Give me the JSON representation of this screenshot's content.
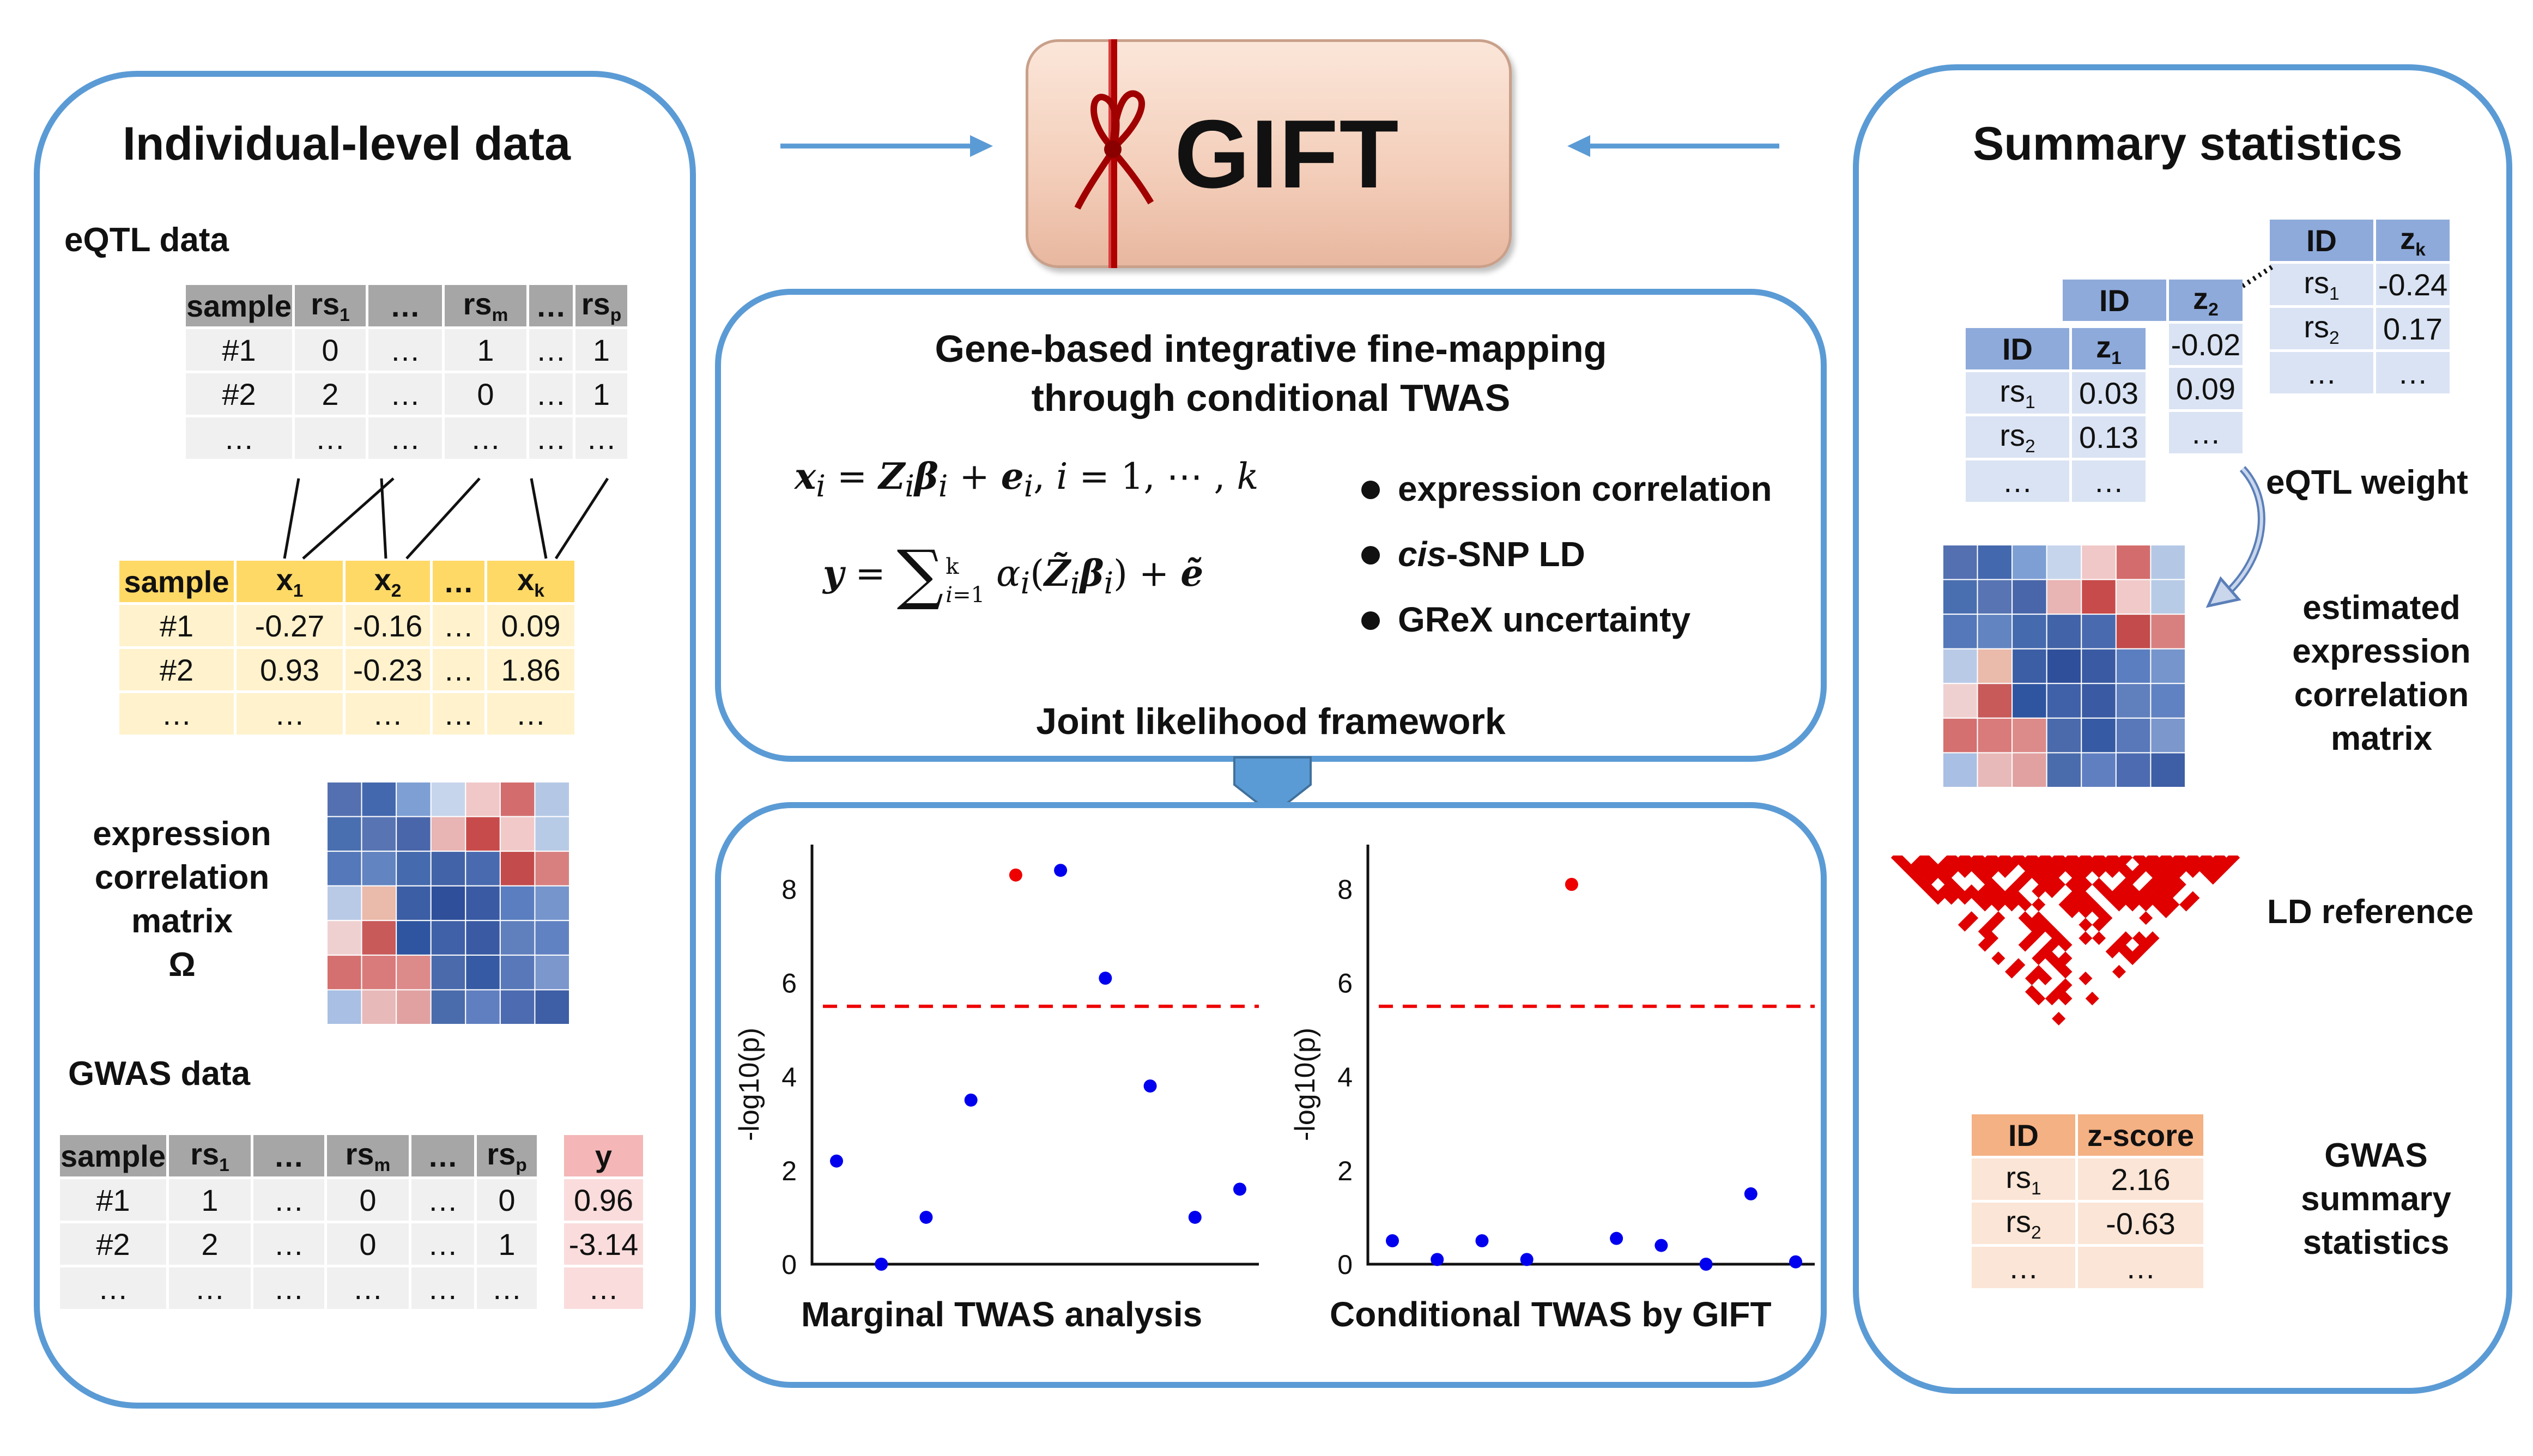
{
  "left_panel": {
    "title": "Individual-level data",
    "eqtl_label": "eQTL data",
    "geno_table": {
      "headers": [
        {
          "b": "sample"
        },
        {
          "b": "rs",
          "s": "1"
        },
        {
          "b": "…"
        },
        {
          "b": "rs",
          "s": "m"
        },
        {
          "b": "…"
        },
        {
          "b": "rs",
          "s": "p"
        }
      ],
      "rows": [
        [
          "#1",
          "0",
          "…",
          "1",
          "…",
          "1"
        ],
        [
          "#2",
          "2",
          "…",
          "0",
          "…",
          "1"
        ],
        [
          "…",
          "…",
          "…",
          "…",
          "…",
          "…"
        ]
      ]
    },
    "expr_table": {
      "headers": [
        {
          "b": "sample"
        },
        {
          "b": "x",
          "s": "1"
        },
        {
          "b": "x",
          "s": "2"
        },
        {
          "b": "…"
        },
        {
          "b": "x",
          "s": "k"
        }
      ],
      "rows": [
        [
          "#1",
          "-0.27",
          "-0.16",
          "…",
          "0.09"
        ],
        [
          "#2",
          "0.93",
          "-0.23",
          "…",
          "1.86"
        ],
        [
          "…",
          "…",
          "…",
          "…",
          "…"
        ]
      ]
    },
    "corr_label": [
      "expression",
      "correlation",
      "matrix",
      "Ω"
    ],
    "gwas_label": "GWAS data",
    "gwas_table": {
      "headers": [
        {
          "b": "sample"
        },
        {
          "b": "rs",
          "s": "1"
        },
        {
          "b": "…"
        },
        {
          "b": "rs",
          "s": "m"
        },
        {
          "b": "…"
        },
        {
          "b": "rs",
          "s": "p"
        }
      ],
      "rows": [
        [
          "#1",
          "1",
          "…",
          "0",
          "…",
          "0"
        ],
        [
          "#2",
          "2",
          "…",
          "0",
          "…",
          "1"
        ],
        [
          "…",
          "…",
          "…",
          "…",
          "…",
          "…"
        ]
      ]
    },
    "y_table": {
      "header": "y",
      "rows": [
        "0.96",
        "-3.14",
        "…"
      ]
    }
  },
  "gift_box": {
    "label": "GIFT",
    "colors": {
      "box": "#f3d3c3",
      "ribbon": "#c00000"
    }
  },
  "model_box": {
    "title_line1": "Gene-based integrative fine-mapping",
    "title_line2": "through conditional TWAS",
    "eq1": "x_i = Z_i β_i + e_i, i = 1, ⋯ , k",
    "eq2": "y = Σ_{i=1}^{k} α_i (Z̃_i β_i) + ẽ",
    "bullets": [
      {
        "italic": "",
        "text": "expression correlation"
      },
      {
        "italic": "cis",
        "text": "-SNP LD"
      },
      {
        "italic": "",
        "text": "GReX uncertainty"
      }
    ],
    "footer": "Joint likelihood framework"
  },
  "chart_data": [
    {
      "type": "scatter",
      "title": "Marginal TWAS analysis",
      "xlabel": "",
      "ylabel": "-log10(p)",
      "ylim": [
        0,
        8.6
      ],
      "yticks": [
        "0",
        "2",
        "4",
        "6",
        "8"
      ],
      "threshold": 5.5,
      "points": [
        {
          "x": 1,
          "y": 2.2,
          "highlight": false
        },
        {
          "x": 2,
          "y": 0.0,
          "highlight": false
        },
        {
          "x": 3,
          "y": 1.0,
          "highlight": false
        },
        {
          "x": 4,
          "y": 3.5,
          "highlight": false
        },
        {
          "x": 5,
          "y": 8.3,
          "highlight": true
        },
        {
          "x": 6,
          "y": 8.4,
          "highlight": false
        },
        {
          "x": 7,
          "y": 6.1,
          "highlight": false
        },
        {
          "x": 8,
          "y": 3.8,
          "highlight": false
        },
        {
          "x": 9,
          "y": 1.0,
          "highlight": false
        },
        {
          "x": 10,
          "y": 1.6,
          "highlight": false
        }
      ]
    },
    {
      "type": "scatter",
      "title": "Conditional TWAS by GIFT",
      "xlabel": "",
      "ylabel": "-log10(p)",
      "ylim": [
        0,
        8.6
      ],
      "yticks": [
        "0",
        "2",
        "4",
        "6",
        "8"
      ],
      "threshold": 5.5,
      "points": [
        {
          "x": 1,
          "y": 0.5,
          "highlight": false
        },
        {
          "x": 2,
          "y": 0.1,
          "highlight": false
        },
        {
          "x": 3,
          "y": 0.5,
          "highlight": false
        },
        {
          "x": 4,
          "y": 0.1,
          "highlight": false
        },
        {
          "x": 5,
          "y": 8.1,
          "highlight": true
        },
        {
          "x": 6,
          "y": 0.55,
          "highlight": false
        },
        {
          "x": 7,
          "y": 0.4,
          "highlight": false
        },
        {
          "x": 8,
          "y": 0.0,
          "highlight": false
        },
        {
          "x": 9,
          "y": 1.5,
          "highlight": false
        },
        {
          "x": 10,
          "y": 0.05,
          "highlight": false
        }
      ]
    }
  ],
  "right_panel": {
    "title": "Summary statistics",
    "z1_table": {
      "headers": [
        {
          "b": "ID"
        },
        {
          "b": "z",
          "s": "1"
        }
      ],
      "rows": [
        [
          {
            "b": "rs",
            "s": "1"
          },
          "0.03"
        ],
        [
          {
            "b": "rs",
            "s": "2"
          },
          "0.13"
        ],
        [
          "…",
          "…"
        ]
      ]
    },
    "z2_table": {
      "headers": [
        {
          "b": "ID"
        },
        {
          "b": "z",
          "s": "2"
        }
      ],
      "rows": [
        [
          "-0.02"
        ],
        [
          "0.09"
        ],
        [
          "…"
        ]
      ]
    },
    "zk_table": {
      "headers": [
        {
          "b": "ID"
        },
        {
          "b": "z",
          "s": "k"
        }
      ],
      "rows": [
        [
          {
            "b": "rs",
            "s": "1"
          },
          "-0.24"
        ],
        [
          {
            "b": "rs",
            "s": "2"
          },
          "0.17"
        ],
        [
          "…",
          "…"
        ]
      ]
    },
    "eqtl_weight_label": "eQTL weight",
    "est_label": [
      "estimated",
      "expression",
      "correlation",
      "matrix"
    ],
    "ld_label": "LD reference",
    "gwas_table": {
      "headers": [
        {
          "b": "ID"
        },
        {
          "b": "z-score"
        }
      ],
      "rows": [
        [
          {
            "b": "rs",
            "s": "1"
          },
          "2.16"
        ],
        [
          {
            "b": "rs",
            "s": "2"
          },
          "-0.63"
        ],
        [
          "…",
          "…"
        ]
      ]
    },
    "gwas_label": [
      "GWAS",
      "summary",
      "statistics"
    ]
  },
  "heatmaps": {
    "left": [
      [
        "#5470b0",
        "#4468ad",
        "#7e9fd4",
        "#c7d5ec",
        "#f0c8c8",
        "#d36d6d",
        "#b4c8e6"
      ],
      [
        "#4a6fb0",
        "#5874b3",
        "#4a66aa",
        "#e9b4b4",
        "#c84b4b",
        "#f1c9c9",
        "#b8cbe6"
      ],
      [
        "#5478b9",
        "#6284c0",
        "#456aad",
        "#4263a7",
        "#4a6ab0",
        "#c34b4b",
        "#d88080"
      ],
      [
        "#b9cae7",
        "#eabaaa",
        "#3c5ea5",
        "#2f4f9a",
        "#3a5aa3",
        "#5b7ec0",
        "#7595cc"
      ],
      [
        "#efd0d0",
        "#c85a5a",
        "#2f55a0",
        "#4060a8",
        "#3a5ba3",
        "#607fbd",
        "#6182c2"
      ],
      [
        "#d47070",
        "#d97b7b",
        "#dd8a8a",
        "#4a6aac",
        "#365aa3",
        "#5878b9",
        "#7b97cc"
      ],
      [
        "#a9bfe3",
        "#e8b9b9",
        "#e1a1a1",
        "#4b6cac",
        "#607fc0",
        "#4c6bb0",
        "#3e5ea5"
      ]
    ],
    "right": [
      [
        "#5470b0",
        "#4468ad",
        "#7e9fd4",
        "#c7d5ec",
        "#f0c8c8",
        "#d36d6d",
        "#b4c8e6"
      ],
      [
        "#4a6fb0",
        "#5874b3",
        "#4a66aa",
        "#e9b4b4",
        "#c84b4b",
        "#f1c9c9",
        "#b8cbe6"
      ],
      [
        "#5478b9",
        "#6284c0",
        "#456aad",
        "#4263a7",
        "#4a6ab0",
        "#c34b4b",
        "#d88080"
      ],
      [
        "#b9cae7",
        "#eabaaa",
        "#3c5ea5",
        "#2f4f9a",
        "#3a5aa3",
        "#5b7ec0",
        "#7595cc"
      ],
      [
        "#efd0d0",
        "#c85a5a",
        "#2f55a0",
        "#4060a8",
        "#3a5ba3",
        "#607fbd",
        "#6182c2"
      ],
      [
        "#d47070",
        "#d97b7b",
        "#dd8a8a",
        "#4a6aac",
        "#365aa3",
        "#5878b9",
        "#7b97cc"
      ],
      [
        "#a9bfe3",
        "#e8b9b9",
        "#e1a1a1",
        "#4b6cac",
        "#607fc0",
        "#4c6bb0",
        "#3e5ea5"
      ]
    ]
  },
  "colors": {
    "panel_border": "#5b9bd5",
    "point_blue": "#0000ee",
    "point_red": "#ee0000",
    "threshold": "#ee0000",
    "ld_red": "#e00000"
  }
}
